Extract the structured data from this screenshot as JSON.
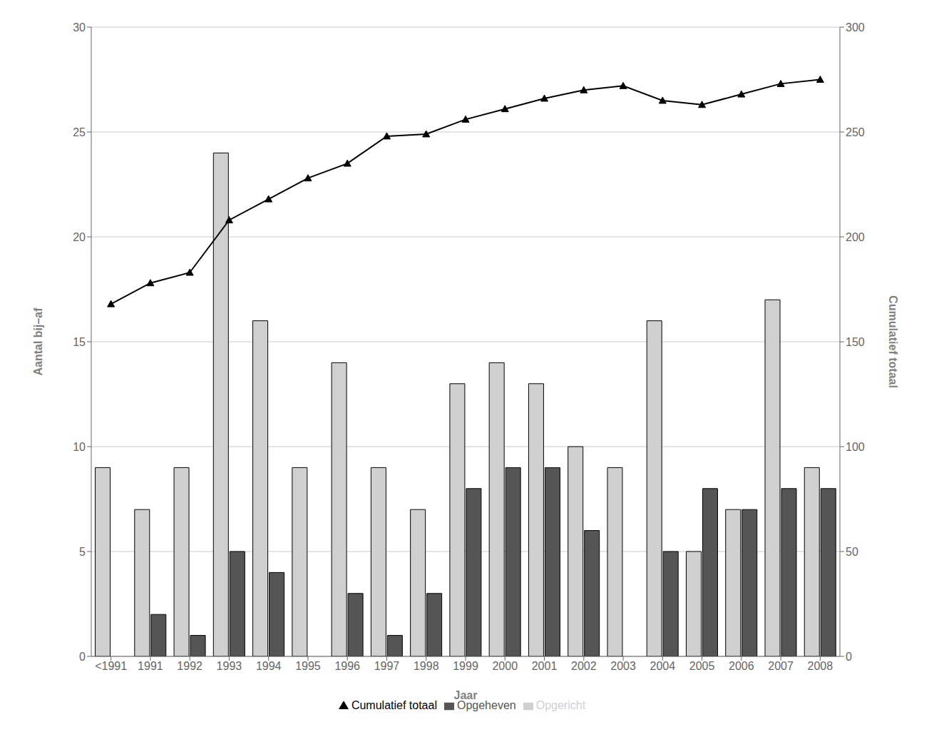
{
  "chart_data": {
    "type": "bar",
    "categories": [
      "<1991",
      "1991",
      "1992",
      "1993",
      "1994",
      "1995",
      "1996",
      "1997",
      "1998",
      "1999",
      "2000",
      "2001",
      "2002",
      "2003",
      "2004",
      "2005",
      "2006",
      "2007",
      "2008"
    ],
    "series": [
      {
        "name": "Opgericht",
        "color": "#d0d0d0",
        "values": [
          9,
          7,
          9,
          24,
          16,
          9,
          14,
          9,
          7,
          13,
          14,
          13,
          10,
          9,
          16,
          5,
          7,
          17,
          9
        ]
      },
      {
        "name": "Opgeheven",
        "color": "#555555",
        "values": [
          0,
          2,
          1,
          5,
          4,
          0,
          3,
          1,
          3,
          8,
          9,
          9,
          6,
          0,
          5,
          8,
          7,
          8,
          8
        ]
      },
      {
        "name": "Cumulatief totaal",
        "type": "line",
        "axis": "y2",
        "color": "#000000",
        "marker": "triangle",
        "values": [
          168,
          178,
          183,
          208,
          218,
          228,
          235,
          248,
          249,
          256,
          261,
          266,
          270,
          272,
          265,
          263,
          268,
          273,
          275
        ]
      }
    ],
    "xlabel": "Jaar",
    "ylabel": "Aantal bij–af",
    "y2label": "Cumulatief totaal",
    "ylim": [
      0,
      30
    ],
    "yticks": [
      0,
      5,
      10,
      15,
      20,
      25,
      30
    ],
    "y2lim": [
      0,
      300
    ],
    "y2ticks": [
      0,
      50,
      100,
      150,
      200,
      250,
      300
    ],
    "grid": true,
    "legend": "bottom"
  }
}
